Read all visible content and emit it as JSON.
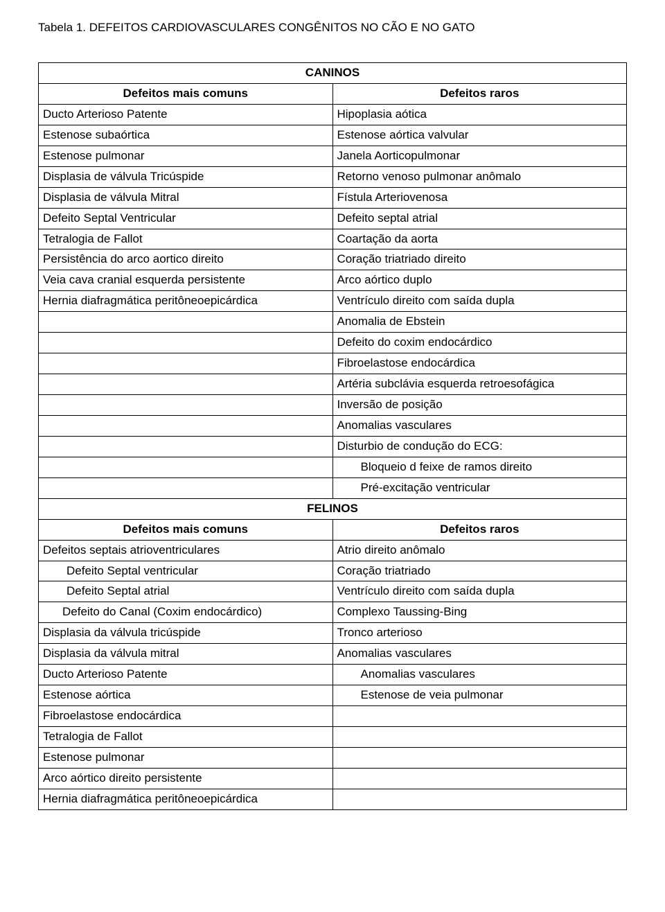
{
  "title": "Tabela 1. DEFEITOS CARDIOVASCULARES CONGÊNITOS NO CÃO E NO GATO",
  "caninos_header": "CANINOS",
  "felinos_header": "FELINOS",
  "col_left": "Defeitos mais comuns",
  "col_right": "Defeitos raros",
  "caninos": [
    {
      "l": "Ducto Arterioso Patente",
      "r": "Hipoplasia aótica"
    },
    {
      "l": "Estenose subaórtica",
      "r": "Estenose aórtica valvular"
    },
    {
      "l": "Estenose pulmonar",
      "r": "Janela Aorticopulmonar"
    },
    {
      "l": "Displasia de válvula Tricúspide",
      "r": "Retorno venoso pulmonar anômalo"
    },
    {
      "l": "Displasia de válvula Mitral",
      "r": "Fístula Arteriovenosa"
    },
    {
      "l": "Defeito Septal Ventricular",
      "r": "Defeito septal atrial"
    },
    {
      "l": "Tetralogia de Fallot",
      "r": "Coartação da aorta"
    },
    {
      "l": "Persistência do arco aortico direito",
      "r": "Coração triatriado direito"
    },
    {
      "l": "Veia cava cranial esquerda persistente",
      "r": "Arco aórtico duplo"
    },
    {
      "l": "Hernia diafragmática peritôneoepicárdica",
      "r": "Ventrículo direito com saída dupla"
    },
    {
      "l": "",
      "r": "Anomalia de Ebstein"
    },
    {
      "l": "",
      "r": "Defeito do coxim endocárdico"
    },
    {
      "l": "",
      "r": "Fibroelastose endocárdica"
    },
    {
      "l": "",
      "r": "Artéria subclávia esquerda retroesofágica"
    },
    {
      "l": "",
      "r": "Inversão de posição"
    },
    {
      "l": "",
      "r": "Anomalias vasculares"
    },
    {
      "l": "",
      "r": "Disturbio de condução do ECG:"
    },
    {
      "l": "",
      "r": "Bloqueio d feixe de ramos direito",
      "r_indent": 1
    },
    {
      "l": "",
      "r": "Pré-excitação ventricular",
      "r_indent": 1
    }
  ],
  "felinos": [
    {
      "l": "Defeitos septais atrioventriculares",
      "r": "Atrio direito anômalo"
    },
    {
      "l": "Defeito Septal ventricular",
      "r": "Coração triatriado",
      "l_indent": 1
    },
    {
      "l": "Defeito Septal atrial",
      "r": "Ventrículo direito com saída dupla",
      "l_indent": 1
    },
    {
      "l": "Defeito do Canal (Coxim endocárdico)",
      "r": "Complexo Taussing-Bing",
      "l_indent_first": 1
    },
    {
      "l": "Displasia da válvula tricúspide",
      "r": "Tronco arterioso"
    },
    {
      "l": "Displasia da válvula mitral",
      "r": "Anomalias vasculares"
    },
    {
      "l": "Ducto Arterioso Patente",
      "r": "Anomalias vasculares",
      "r_indent": 1
    },
    {
      "l": "Estenose aórtica",
      "r": "Estenose de veia pulmonar",
      "r_indent": 1
    },
    {
      "l": "Fibroelastose endocárdica",
      "r": ""
    },
    {
      "l": "Tetralogia de Fallot",
      "r": ""
    },
    {
      "l": "Estenose pulmonar",
      "r": ""
    },
    {
      "l": "Arco aórtico direito persistente",
      "r": ""
    },
    {
      "l": "Hernia diafragmática peritôneoepicárdica",
      "r": ""
    }
  ]
}
